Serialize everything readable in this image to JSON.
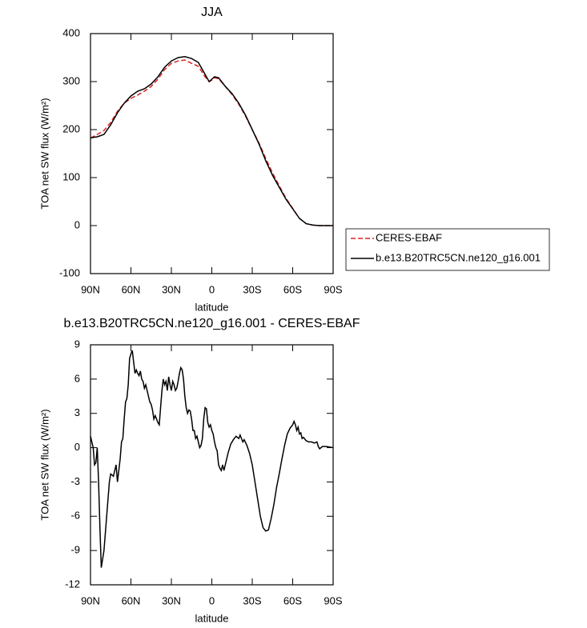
{
  "chart_data": [
    {
      "type": "line",
      "title": "JJA",
      "xlabel": "latitude",
      "ylabel": "TOA net SW flux (W/m²)",
      "x": [
        90,
        85,
        80,
        75,
        70,
        65,
        60,
        55,
        50,
        45,
        40,
        35,
        30,
        25,
        20,
        15,
        10,
        5,
        2,
        0,
        -2,
        -5,
        -10,
        -15,
        -20,
        -25,
        -30,
        -35,
        -40,
        -45,
        -50,
        -55,
        -60,
        -65,
        -70,
        -75,
        -80,
        -85,
        -90
      ],
      "series": [
        {
          "name": "CERES-EBAF",
          "color": "#e02020",
          "dash": true,
          "values": [
            182,
            190,
            198,
            215,
            238,
            255,
            265,
            272,
            280,
            290,
            305,
            325,
            338,
            343,
            345,
            338,
            332,
            310,
            300,
            303,
            308,
            306,
            290,
            273,
            253,
            228,
            200,
            172,
            140,
            110,
            83,
            57,
            36,
            15,
            4,
            1,
            0,
            0,
            0
          ]
        },
        {
          "name": "b.e13.B20TRC5CN.ne120_g16.001",
          "color": "#000000",
          "dash": false,
          "values": [
            183,
            185,
            190,
            210,
            235,
            255,
            270,
            280,
            285,
            295,
            310,
            330,
            343,
            350,
            352,
            348,
            340,
            315,
            300,
            305,
            310,
            308,
            290,
            275,
            255,
            230,
            200,
            170,
            135,
            105,
            80,
            55,
            35,
            15,
            4,
            1,
            0,
            0,
            0
          ]
        }
      ],
      "xlim": [
        90,
        -90
      ],
      "xticks": [
        {
          "value": 90,
          "label": "90N"
        },
        {
          "value": 60,
          "label": "60N"
        },
        {
          "value": 30,
          "label": "30N"
        },
        0,
        {
          "value": -30,
          "label": "30S"
        },
        {
          "value": -60,
          "label": "60S"
        },
        {
          "value": -90,
          "label": "90S"
        }
      ],
      "ylim": [
        -100,
        400
      ],
      "yticks": [
        -100,
        0,
        100,
        200,
        300,
        400
      ],
      "legend": "right"
    },
    {
      "type": "line",
      "title": "b.e13.B20TRC5CN.ne120_g16.001 - CERES-EBAF",
      "xlabel": "latitude",
      "ylabel": "TOA net SW flux (W/m²)",
      "x": [
        90,
        88,
        87,
        86,
        85,
        84,
        83,
        82,
        80,
        78,
        76,
        75,
        73,
        71,
        70,
        68,
        67,
        66,
        65,
        64,
        63,
        62,
        61,
        60,
        59,
        58,
        57,
        56,
        55,
        54,
        53,
        52,
        51,
        50,
        49,
        48,
        47,
        46,
        45,
        44,
        43,
        42,
        40,
        39,
        38,
        37,
        36,
        35,
        34,
        33,
        32,
        31,
        30,
        29,
        28,
        27,
        26,
        25,
        24,
        23,
        22,
        21,
        20,
        19,
        18,
        17,
        16,
        15,
        14,
        13,
        12,
        11,
        10,
        9,
        8,
        7,
        6,
        5,
        4,
        3,
        2,
        1,
        0,
        -1,
        -2,
        -3,
        -4,
        -5,
        -6,
        -7,
        -8,
        -9,
        -10,
        -12,
        -14,
        -16,
        -18,
        -20,
        -21,
        -22,
        -23,
        -24,
        -26,
        -28,
        -30,
        -32,
        -34,
        -36,
        -38,
        -40,
        -42,
        -44,
        -46,
        -48,
        -50,
        -52,
        -54,
        -56,
        -58,
        -60,
        -61,
        -62,
        -63,
        -64,
        -65,
        -66,
        -67,
        -68,
        -70,
        -72,
        -74,
        -76,
        -78,
        -79,
        -80,
        -82,
        -85,
        -90
      ],
      "series": [
        {
          "name": "b.e13.B20TRC5CN.ne120_g16.001 - CERES-EBAF",
          "color": "#000000",
          "dash": false,
          "values": [
            1,
            0,
            -1.5,
            -1.3,
            0,
            -3,
            -7,
            -10.5,
            -9,
            -6,
            -3,
            -2.3,
            -2.5,
            -1.5,
            -3,
            -1,
            0.5,
            0.8,
            2.5,
            4,
            4.3,
            5.5,
            7.8,
            8.2,
            8.5,
            7.5,
            6.5,
            6.8,
            6.5,
            6.3,
            6.7,
            6,
            5.8,
            5.2,
            5.5,
            5,
            4.5,
            4,
            3.8,
            3.3,
            2.5,
            2.8,
            2.2,
            2,
            3.5,
            5,
            6,
            5.5,
            5.8,
            5,
            6.2,
            5.5,
            5,
            5.8,
            5.5,
            5,
            5.2,
            5.8,
            6.5,
            7,
            6.8,
            6,
            4.5,
            3.5,
            3,
            3.3,
            3.2,
            2.5,
            1.5,
            1.5,
            0.8,
            1,
            0.5,
            0,
            0.2,
            0.8,
            2.5,
            3.5,
            3.4,
            2.2,
            1.8,
            2,
            1.5,
            1.2,
            0.5,
            0,
            -0.3,
            -1.5,
            -1.8,
            -2,
            -1.5,
            -2,
            -1.5,
            -0.5,
            0.3,
            0.7,
            1,
            0.8,
            1.1,
            0.8,
            0.5,
            0.7,
            0.2,
            -0.5,
            -1.5,
            -3,
            -4.5,
            -6,
            -7,
            -7.3,
            -7.2,
            -6.2,
            -5,
            -3.5,
            -2.3,
            -1,
            0.2,
            1.2,
            1.7,
            2,
            2.3,
            2,
            1.5,
            1.8,
            1.2,
            1.3,
            0.8,
            0.9,
            0.6,
            0.5,
            0.5,
            0.4,
            0.5,
            0.1,
            -0.1,
            0.1,
            0.1,
            0
          ]
        }
      ],
      "xlim": [
        90,
        -90
      ],
      "xticks": [
        {
          "value": 90,
          "label": "90N"
        },
        {
          "value": 60,
          "label": "60N"
        },
        {
          "value": 30,
          "label": "30N"
        },
        0,
        {
          "value": -30,
          "label": "30S"
        },
        {
          "value": -60,
          "label": "60S"
        },
        {
          "value": -90,
          "label": "90S"
        }
      ],
      "ylim": [
        -12,
        9
      ],
      "yticks": [
        -12,
        -9,
        -6,
        -3,
        0,
        3,
        6,
        9
      ]
    }
  ]
}
